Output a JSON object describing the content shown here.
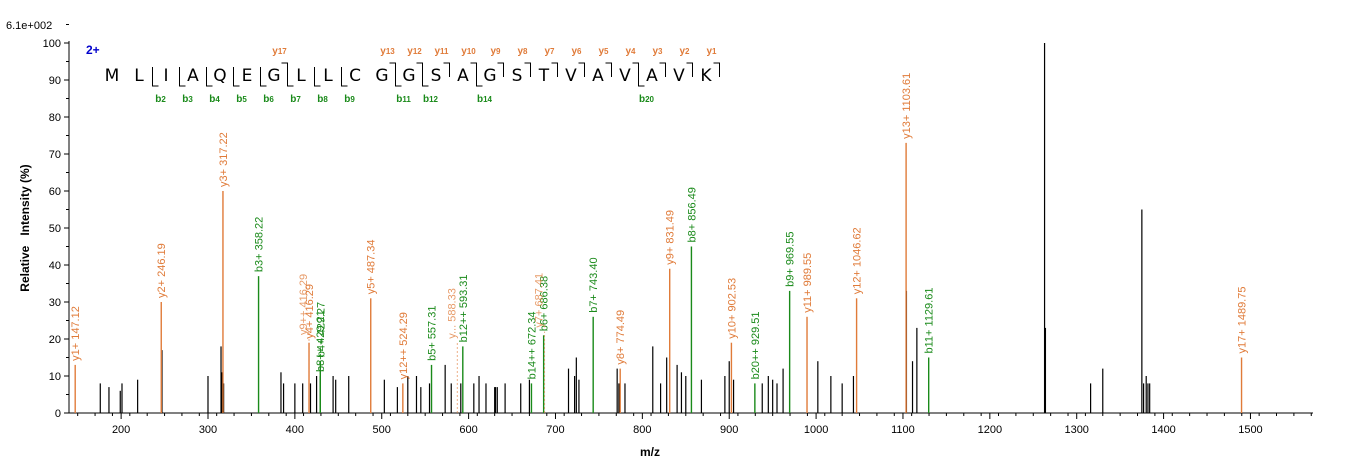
{
  "colors": {
    "y_ion": "#e07b39",
    "b_ion": "#1a8a1a",
    "other": "#000000",
    "charge": "#0000cc"
  },
  "chart_data": {
    "type": "bar",
    "ymax_label": "6.1e+002",
    "xlabel": "m/z",
    "ylabel": "Relative   Intensity (%)",
    "xlim": [
      140,
      1572
    ],
    "ylim": [
      0,
      100
    ],
    "x_ticks": [
      200,
      300,
      400,
      500,
      600,
      700,
      800,
      900,
      1000,
      1100,
      1200,
      1300,
      1400,
      1500
    ],
    "y_ticks": [
      0,
      10,
      20,
      30,
      40,
      50,
      60,
      70,
      80,
      90,
      100
    ],
    "charge_label": "2+",
    "sequence": [
      "M",
      "L",
      "I",
      "A",
      "Q",
      "E",
      "G",
      "L",
      "L",
      "C",
      "G",
      "G",
      "S",
      "A",
      "G",
      "S",
      "T",
      "V",
      "A",
      "V",
      "A",
      "V",
      "K"
    ],
    "y_ions": [
      {
        "label": "y17",
        "after": 6
      },
      {
        "label": "y13",
        "after": 10
      },
      {
        "label": "y12",
        "after": 11
      },
      {
        "label": "y11",
        "after": 12
      },
      {
        "label": "y10",
        "after": 13
      },
      {
        "label": "y9",
        "after": 14
      },
      {
        "label": "y8",
        "after": 15
      },
      {
        "label": "y7",
        "after": 16
      },
      {
        "label": "y6",
        "after": 17
      },
      {
        "label": "y5",
        "after": 18
      },
      {
        "label": "y4",
        "after": 19
      },
      {
        "label": "y3",
        "after": 20
      },
      {
        "label": "y2",
        "after": 21
      },
      {
        "label": "y1",
        "after": 22
      }
    ],
    "b_ions": [
      {
        "label": "b2",
        "after": 2
      },
      {
        "label": "b3",
        "after": 3
      },
      {
        "label": "b4",
        "after": 4
      },
      {
        "label": "b5",
        "after": 5
      },
      {
        "label": "b6",
        "after": 6
      },
      {
        "label": "b7",
        "after": 7
      },
      {
        "label": "b8",
        "after": 8
      },
      {
        "label": "b9",
        "after": 9
      },
      {
        "label": "b11",
        "after": 11
      },
      {
        "label": "b12",
        "after": 12
      },
      {
        "label": "b14",
        "after": 14
      },
      {
        "label": "b20",
        "after": 20
      }
    ],
    "labeled_peaks": [
      {
        "mz": 147.12,
        "i": 13,
        "type": "y",
        "label": "y1+ 147.12"
      },
      {
        "mz": 246.19,
        "i": 30,
        "type": "y",
        "label": "y2+ 246.19"
      },
      {
        "mz": 317.22,
        "i": 60,
        "type": "y",
        "label": "y3+ 317.22"
      },
      {
        "mz": 358.22,
        "i": 37,
        "type": "b",
        "label": "b3+ 358.22"
      },
      {
        "mz": 416.29,
        "i": 19,
        "type": "y",
        "label": "y4+ 416.29"
      },
      {
        "mz": 429.21,
        "i": 10,
        "type": "b",
        "label": "b8++ 429.21"
      },
      {
        "mz": 429.27,
        "i": 14,
        "type": "b",
        "label": "b4+ 429.27"
      },
      {
        "mz": 487.34,
        "i": 31,
        "type": "y",
        "label": "y5+ 487.34"
      },
      {
        "mz": 524.29,
        "i": 8,
        "type": "y",
        "label": "y12++ 524.29"
      },
      {
        "mz": 557.31,
        "i": 13,
        "type": "b",
        "label": "b5+ 557.31"
      },
      {
        "mz": 593.31,
        "i": 18,
        "type": "b",
        "label": "b12++ 593.31"
      },
      {
        "mz": 672.34,
        "i": 8,
        "type": "b",
        "label": "b14++ 672.34"
      },
      {
        "mz": 686.38,
        "i": 21,
        "type": "b",
        "label": "b6+ 686.38"
      },
      {
        "mz": 743.4,
        "i": 26,
        "type": "b",
        "label": "b7+ 743.40"
      },
      {
        "mz": 774.49,
        "i": 12,
        "type": "y",
        "label": "y8+ 774.49"
      },
      {
        "mz": 831.49,
        "i": 39,
        "type": "y",
        "label": "y9+ 831.49"
      },
      {
        "mz": 856.49,
        "i": 45,
        "type": "b",
        "label": "b8+ 856.49"
      },
      {
        "mz": 902.53,
        "i": 19,
        "type": "y",
        "label": "y10+ 902.53"
      },
      {
        "mz": 929.51,
        "i": 8,
        "type": "b",
        "label": "b20++ 929.51"
      },
      {
        "mz": 969.55,
        "i": 33,
        "type": "b",
        "label": "b9+ 969.55"
      },
      {
        "mz": 989.55,
        "i": 26,
        "type": "y",
        "label": "y11+ 989.55"
      },
      {
        "mz": 1046.62,
        "i": 31,
        "type": "y",
        "label": "y12+ 1046.62"
      },
      {
        "mz": 1103.61,
        "i": 73,
        "type": "y",
        "label": "y13+ 1103.61"
      },
      {
        "mz": 1129.61,
        "i": 15,
        "type": "b",
        "label": "b11+ 1129.61"
      },
      {
        "mz": 1489.75,
        "i": 15,
        "type": "y",
        "label": "y17+ 1489.75"
      }
    ],
    "faded_labels": [
      {
        "x": 416.29,
        "i": 20,
        "type": "y",
        "text": "y9++ 416.29"
      },
      {
        "x": 587,
        "i": 19,
        "type": "y",
        "text": "y... 588.33"
      },
      {
        "x": 687.41,
        "i": 22,
        "type": "y",
        "text": "y7+ 687.41"
      }
    ],
    "other_peaks": [
      {
        "mz": 176,
        "i": 8
      },
      {
        "mz": 186,
        "i": 7
      },
      {
        "mz": 199,
        "i": 6
      },
      {
        "mz": 201,
        "i": 8
      },
      {
        "mz": 219,
        "i": 9
      },
      {
        "mz": 247,
        "i": 17
      },
      {
        "mz": 300,
        "i": 10
      },
      {
        "mz": 315,
        "i": 18
      },
      {
        "mz": 316,
        "i": 11
      },
      {
        "mz": 318,
        "i": 8
      },
      {
        "mz": 384,
        "i": 11
      },
      {
        "mz": 387,
        "i": 8
      },
      {
        "mz": 400,
        "i": 8
      },
      {
        "mz": 409,
        "i": 8
      },
      {
        "mz": 418,
        "i": 8
      },
      {
        "mz": 425,
        "i": 10
      },
      {
        "mz": 444,
        "i": 10
      },
      {
        "mz": 447,
        "i": 9
      },
      {
        "mz": 462,
        "i": 10
      },
      {
        "mz": 503,
        "i": 9
      },
      {
        "mz": 518,
        "i": 7
      },
      {
        "mz": 530,
        "i": 10
      },
      {
        "mz": 540,
        "i": 10
      },
      {
        "mz": 545,
        "i": 7
      },
      {
        "mz": 555,
        "i": 8
      },
      {
        "mz": 573,
        "i": 13
      },
      {
        "mz": 580,
        "i": 8
      },
      {
        "mz": 591,
        "i": 8
      },
      {
        "mz": 606,
        "i": 8
      },
      {
        "mz": 612,
        "i": 10
      },
      {
        "mz": 620,
        "i": 8
      },
      {
        "mz": 630,
        "i": 7
      },
      {
        "mz": 631,
        "i": 7
      },
      {
        "mz": 633,
        "i": 7
      },
      {
        "mz": 642,
        "i": 8
      },
      {
        "mz": 660,
        "i": 8
      },
      {
        "mz": 670,
        "i": 9
      },
      {
        "mz": 715,
        "i": 12
      },
      {
        "mz": 722,
        "i": 10
      },
      {
        "mz": 724,
        "i": 15
      },
      {
        "mz": 727,
        "i": 9
      },
      {
        "mz": 771,
        "i": 12
      },
      {
        "mz": 773,
        "i": 8
      },
      {
        "mz": 780,
        "i": 8
      },
      {
        "mz": 812,
        "i": 18
      },
      {
        "mz": 821,
        "i": 8
      },
      {
        "mz": 828,
        "i": 15
      },
      {
        "mz": 840,
        "i": 13
      },
      {
        "mz": 845,
        "i": 11
      },
      {
        "mz": 850,
        "i": 10
      },
      {
        "mz": 868,
        "i": 9
      },
      {
        "mz": 895,
        "i": 10
      },
      {
        "mz": 900,
        "i": 14
      },
      {
        "mz": 905,
        "i": 9
      },
      {
        "mz": 938,
        "i": 8
      },
      {
        "mz": 945,
        "i": 10
      },
      {
        "mz": 950,
        "i": 9
      },
      {
        "mz": 955,
        "i": 8
      },
      {
        "mz": 962,
        "i": 12
      },
      {
        "mz": 1002,
        "i": 14
      },
      {
        "mz": 1017,
        "i": 10
      },
      {
        "mz": 1030,
        "i": 8
      },
      {
        "mz": 1043,
        "i": 10
      },
      {
        "mz": 1104,
        "i": 33
      },
      {
        "mz": 1111,
        "i": 14
      },
      {
        "mz": 1116,
        "i": 23
      },
      {
        "mz": 1263,
        "i": 100
      },
      {
        "mz": 1264,
        "i": 23
      },
      {
        "mz": 1316,
        "i": 8
      },
      {
        "mz": 1330,
        "i": 12
      },
      {
        "mz": 1375,
        "i": 55
      },
      {
        "mz": 1377,
        "i": 8
      },
      {
        "mz": 1380,
        "i": 10
      },
      {
        "mz": 1382,
        "i": 8
      },
      {
        "mz": 1384,
        "i": 8
      }
    ]
  }
}
